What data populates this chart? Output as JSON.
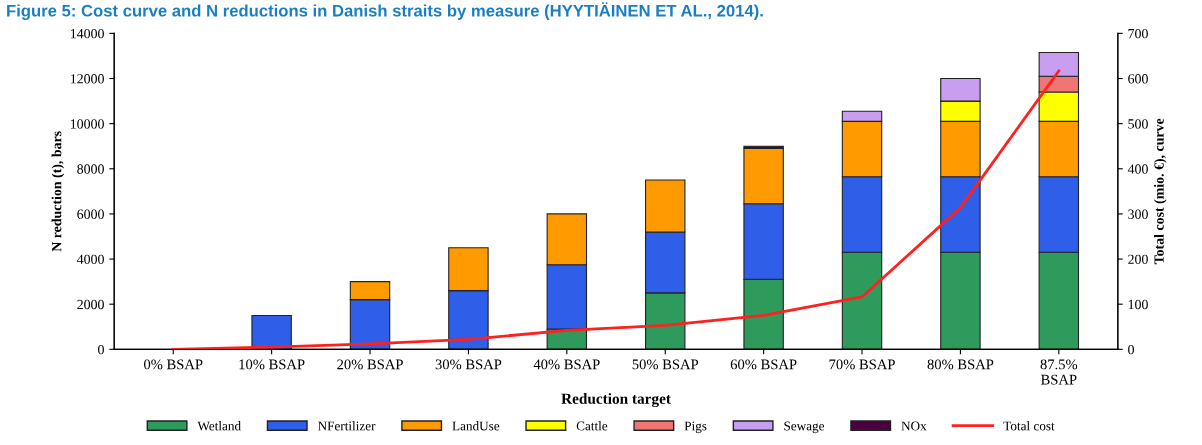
{
  "chart_data": {
    "type": "bar",
    "stacked": true,
    "title": "Figure 5: Cost curve and N reductions in Danish straits by measure (HYYTIÄINEN ET AL., 2014).",
    "xlabel": "Reduction target",
    "ylabel": "N reduction (t), bars",
    "y2label": "Total cost (mio. €), curve",
    "categories": [
      "0% BSAP",
      "10% BSAP",
      "20% BSAP",
      "30% BSAP",
      "40% BSAP",
      "50% BSAP",
      "60% BSAP",
      "70% BSAP",
      "80% BSAP",
      "87.5%\nBSAP"
    ],
    "series": [
      {
        "name": "Wetland",
        "color": "#2e9a5c",
        "values": [
          null,
          null,
          null,
          null,
          900,
          2500,
          3100,
          4300,
          4300,
          4300
        ]
      },
      {
        "name": "NFertilizer",
        "color": "#2f5fe8",
        "values": [
          null,
          1500,
          2200,
          2600,
          2850,
          2700,
          3350,
          3350,
          3350,
          3350
        ]
      },
      {
        "name": "LandUse",
        "color": "#ff9a00",
        "values": [
          null,
          null,
          800,
          1900,
          2250,
          2300,
          2450,
          2450,
          2450,
          2450
        ]
      },
      {
        "name": "Cattle",
        "color": "#ffff00",
        "values": [
          null,
          null,
          null,
          null,
          null,
          null,
          null,
          null,
          900,
          1300
        ]
      },
      {
        "name": "Pigs",
        "color": "#f07575",
        "values": [
          null,
          null,
          null,
          null,
          null,
          null,
          null,
          null,
          null,
          700
        ]
      },
      {
        "name": "Sewage",
        "color": "#c79ef0",
        "values": [
          null,
          null,
          null,
          null,
          null,
          null,
          null,
          450,
          1000,
          1050
        ]
      },
      {
        "name": "NOx",
        "color": "#4a0040",
        "values": [
          null,
          null,
          null,
          null,
          null,
          null,
          100,
          null,
          null,
          null
        ]
      },
      {
        "name": "Total cost",
        "type": "line",
        "axis": "y2",
        "color": "#ff2020",
        "values": [
          0,
          5,
          12,
          22,
          42,
          53,
          75,
          116,
          314,
          617
        ]
      }
    ],
    "ylim": [
      0,
      14000
    ],
    "yticks": [
      0,
      2000,
      4000,
      6000,
      8000,
      10000,
      12000,
      14000
    ],
    "y2lim": [
      0,
      700
    ],
    "y2ticks": [
      0,
      100,
      200,
      300,
      400,
      500,
      600,
      700
    ],
    "legend": "bottom",
    "marker": "none",
    "grid": false
  }
}
